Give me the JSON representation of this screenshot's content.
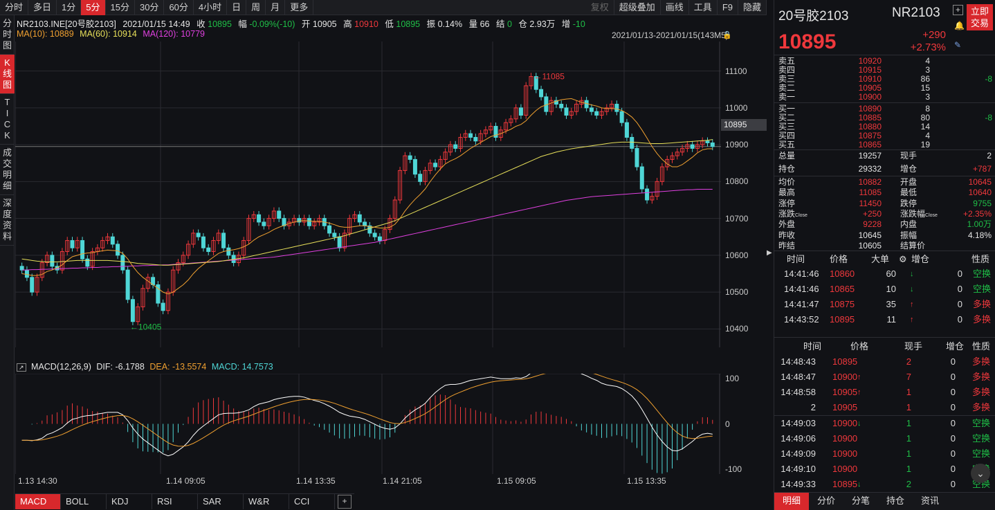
{
  "toolbar": {
    "items": [
      "分时",
      "多日",
      "1分",
      "5分",
      "15分",
      "30分",
      "60分",
      "4小时",
      "日",
      "周",
      "月",
      "更多"
    ],
    "active_index": 3,
    "right_items": [
      "复权",
      "超级叠加",
      "画线",
      "工具",
      "F9",
      "隐藏"
    ]
  },
  "leftnav": [
    "分时图",
    "K线图",
    "TICK",
    "成交明细",
    "深度资料"
  ],
  "leftnav_active": 1,
  "chart_info": {
    "symbol": "NR2103.INE[20号胶2103]",
    "datetime": "2021/01/15 14:49",
    "close_label": "收",
    "close": "10895",
    "range_label": "幅",
    "range": "-0.09%(-10)",
    "open_label": "开",
    "open": "10905",
    "high_label": "高",
    "high": "10910",
    "low_label": "低",
    "low": "10895",
    "amp_label": "振",
    "amp": "0.14%",
    "vol_label": "量",
    "vol": "66",
    "settle_label": "结",
    "settle": "0",
    "oi_label": "仓",
    "oi": "2.93万",
    "inc_label": "增",
    "inc": "-10"
  },
  "ma_info": {
    "ma10": "MA(10): 10889",
    "ma60": "MA(60): 10914",
    "ma120": "MA(120): 10779"
  },
  "date_range": "2021/01/13-2021/01/15(143M5)",
  "price_tag": "10895",
  "high_marker": "11085",
  "low_marker": "10405",
  "macd_info": {
    "name": "MACD(12,26,9)",
    "dif": "DIF: -6.1788",
    "dea": "DEA: -13.5574",
    "macd": "MACD: 14.7573"
  },
  "chart_data": {
    "type": "candlestick",
    "y_ticks": [
      "11100",
      "11000",
      "10900",
      "10800",
      "10700",
      "10600",
      "10500",
      "10400"
    ],
    "ylim": [
      10350,
      11180
    ],
    "x_labels": [
      "1.13 14:30",
      "1.14 09:05",
      "1.14 13:35",
      "1.14 21:05",
      "1.15 09:05",
      "1.15 13:35"
    ],
    "closes": [
      10560,
      10540,
      10500,
      10540,
      10580,
      10600,
      10570,
      10560,
      10610,
      10640,
      10620,
      10640,
      10590,
      10570,
      10610,
      10620,
      10640,
      10650,
      10630,
      10600,
      10560,
      10480,
      10420,
      10460,
      10510,
      10540,
      10520,
      10470,
      10450,
      10500,
      10560,
      10580,
      10600,
      10630,
      10660,
      10650,
      10620,
      10610,
      10640,
      10660,
      10620,
      10600,
      10580,
      10600,
      10640,
      10700,
      10710,
      10690,
      10680,
      10700,
      10720,
      10700,
      10680,
      10690,
      10700,
      10690,
      10700,
      10680,
      10690,
      10700,
      10680,
      10660,
      10650,
      10620,
      10660,
      10700,
      10710,
      10690,
      10680,
      10660,
      10650,
      10640,
      10670,
      10700,
      10750,
      10830,
      10870,
      10860,
      10820,
      10800,
      10830,
      10850,
      10840,
      10860,
      10880,
      10900,
      10890,
      10920,
      10930,
      10920,
      10910,
      10930,
      10940,
      10950,
      10920,
      10940,
      10960,
      10970,
      11000,
      10980,
      11060,
      11085,
      11050,
      11030,
      10990,
      11020,
      11010,
      11000,
      10980,
      10990,
      11010,
      11020,
      11000,
      10990,
      10980,
      10990,
      11000,
      11010,
      10990,
      10960,
      10920,
      10890,
      10840,
      10780,
      10750,
      10760,
      10800,
      10840,
      10860,
      10870,
      10880,
      10890,
      10900,
      10890,
      10900,
      10910,
      10905,
      10895
    ],
    "ma10": [
      10550,
      10548,
      10545,
      10545,
      10548,
      10556,
      10560,
      10566,
      10574,
      10586,
      10596,
      10600,
      10604,
      10606,
      10607,
      10610,
      10612,
      10614,
      10613,
      10612,
      10605,
      10590,
      10570,
      10553,
      10540,
      10530,
      10520,
      10510,
      10500,
      10495,
      10500,
      10510,
      10520,
      10533,
      10550,
      10564,
      10575,
      10585,
      10595,
      10605,
      10610,
      10613,
      10615,
      10618,
      10623,
      10630,
      10641,
      10650,
      10656,
      10662,
      10670,
      10676,
      10681,
      10686,
      10690,
      10693,
      10694,
      10693,
      10692,
      10692,
      10690,
      10687,
      10683,
      10678,
      10676,
      10676,
      10678,
      10680,
      10680,
      10678,
      10676,
      10674,
      10674,
      10676,
      10684,
      10700,
      10720,
      10737,
      10752,
      10765,
      10780,
      10800,
      10818,
      10834,
      10848,
      10856,
      10862,
      10870,
      10880,
      10890,
      10898,
      10906,
      10914,
      10922,
      10926,
      10930,
      10936,
      10942,
      10950,
      10955,
      10965,
      10980,
      10993,
      11003,
      11008,
      11013,
      11018,
      11022,
      11024,
      11025,
      11020,
      11015,
      11012,
      11008,
      11005,
      11000,
      10998,
      10998,
      10997,
      10993,
      10985,
      10975,
      10960,
      10940,
      10918,
      10895,
      10876,
      10860,
      10848,
      10840,
      10840,
      10846,
      10856,
      10866,
      10878,
      10886,
      10889,
      10889
    ],
    "ma60": [
      10590,
      10588,
      10586,
      10584,
      10583,
      10582,
      10582,
      10582,
      10583,
      10584,
      10585,
      10586,
      10586,
      10586,
      10586,
      10586,
      10586,
      10586,
      10585,
      10584,
      10583,
      10582,
      10580,
      10578,
      10577,
      10576,
      10575,
      10574,
      10573,
      10573,
      10574,
      10575,
      10576,
      10577,
      10578,
      10579,
      10580,
      10581,
      10582,
      10583,
      10585,
      10587,
      10589,
      10591,
      10593,
      10596,
      10599,
      10602,
      10605,
      10608,
      10611,
      10614,
      10617,
      10620,
      10623,
      10626,
      10629,
      10632,
      10635,
      10638,
      10641,
      10644,
      10647,
      10650,
      10653,
      10657,
      10661,
      10665,
      10669,
      10673,
      10677,
      10681,
      10685,
      10689,
      10694,
      10700,
      10706,
      10712,
      10718,
      10724,
      10730,
      10736,
      10742,
      10748,
      10754,
      10760,
      10766,
      10772,
      10778,
      10784,
      10790,
      10796,
      10802,
      10808,
      10814,
      10820,
      10826,
      10832,
      10838,
      10844,
      10850,
      10856,
      10862,
      10868,
      10872,
      10876,
      10880,
      10883,
      10886,
      10889,
      10891,
      10893,
      10895,
      10897,
      10899,
      10901,
      10903,
      10905,
      10906,
      10907,
      10907,
      10907,
      10906,
      10905,
      10904,
      10903,
      10903,
      10903,
      10904,
      10905,
      10906,
      10907,
      10908,
      10909,
      10910,
      10911,
      10912,
      10914
    ],
    "ma120": [
      10560,
      10560,
      10561,
      10561,
      10562,
      10562,
      10563,
      10563,
      10564,
      10564,
      10565,
      10565,
      10566,
      10566,
      10567,
      10567,
      10568,
      10568,
      10569,
      10569,
      10570,
      10570,
      10571,
      10571,
      10572,
      10572,
      10573,
      10573,
      10574,
      10574,
      10575,
      10576,
      10577,
      10578,
      10579,
      10580,
      10581,
      10582,
      10583,
      10584,
      10585,
      10586,
      10587,
      10588,
      10589,
      10590,
      10591,
      10592,
      10593,
      10594,
      10595,
      10597,
      10599,
      10601,
      10603,
      10605,
      10607,
      10609,
      10611,
      10613,
      10615,
      10617,
      10619,
      10621,
      10623,
      10625,
      10627,
      10629,
      10631,
      10633,
      10635,
      10638,
      10641,
      10644,
      10647,
      10650,
      10653,
      10656,
      10659,
      10662,
      10665,
      10668,
      10671,
      10674,
      10677,
      10680,
      10683,
      10686,
      10689,
      10692,
      10695,
      10698,
      10701,
      10704,
      10707,
      10710,
      10713,
      10716,
      10719,
      10722,
      10725,
      10728,
      10731,
      10734,
      10737,
      10740,
      10743,
      10746,
      10749,
      10751,
      10753,
      10755,
      10757,
      10759,
      10760,
      10761,
      10762,
      10763,
      10764,
      10765,
      10766,
      10767,
      10768,
      10769,
      10770,
      10771,
      10772,
      10773,
      10774,
      10775,
      10776,
      10777,
      10778,
      10778,
      10779,
      10779,
      10779,
      10779
    ],
    "macd_ylim": [
      -110,
      110
    ],
    "macd_ticks": [
      "100",
      "0",
      "-100"
    ]
  },
  "right": {
    "name": "20号胶2103",
    "code": "NR2103",
    "trade_button": "立即交易",
    "price": "10895",
    "change": "+290",
    "change_pct": "+2.73%",
    "asks": [
      {
        "label": "卖五",
        "price": "10920",
        "vol": "4",
        "chg": ""
      },
      {
        "label": "卖四",
        "price": "10915",
        "vol": "3",
        "chg": ""
      },
      {
        "label": "卖三",
        "price": "10910",
        "vol": "86",
        "chg": "-8"
      },
      {
        "label": "卖二",
        "price": "10905",
        "vol": "15",
        "chg": ""
      },
      {
        "label": "卖一",
        "price": "10900",
        "vol": "3",
        "chg": ""
      }
    ],
    "bids": [
      {
        "label": "买一",
        "price": "10890",
        "vol": "8",
        "chg": ""
      },
      {
        "label": "买二",
        "price": "10885",
        "vol": "80",
        "chg": "-8"
      },
      {
        "label": "买三",
        "price": "10880",
        "vol": "14",
        "chg": ""
      },
      {
        "label": "买四",
        "price": "10875",
        "vol": "4",
        "chg": ""
      },
      {
        "label": "买五",
        "price": "10865",
        "vol": "19",
        "chg": ""
      }
    ],
    "stats1": [
      {
        "l1": "总量",
        "v1": "19257",
        "l2": "现手",
        "v2": "2",
        "c1": "white",
        "c2": "white"
      },
      {
        "l1": "持仓",
        "v1": "29332",
        "l2": "增仓",
        "v2": "+787",
        "c1": "white",
        "c2": "red"
      }
    ],
    "stats2": [
      {
        "l1": "均价",
        "v1": "10882",
        "l2": "开盘",
        "v2": "10645",
        "c1": "red",
        "c2": "red"
      },
      {
        "l1": "最高",
        "v1": "11085",
        "l2": "最低",
        "v2": "10640",
        "c1": "red",
        "c2": "red"
      },
      {
        "l1": "涨停",
        "v1": "11450",
        "l2": "跌停",
        "v2": "9755",
        "c1": "red",
        "c2": "green"
      },
      {
        "l1": "涨跌",
        "v1": "+250",
        "l2": "涨跌幅",
        "v2": "+2.35%",
        "c1": "red",
        "c2": "red",
        "sub": "Close"
      },
      {
        "l1": "外盘",
        "v1": "9228",
        "l2": "内盘",
        "v2": "1.00万",
        "c1": "red",
        "c2": "green"
      },
      {
        "l1": "昨收",
        "v1": "10645",
        "l2": "振幅",
        "v2": "4.18%",
        "c1": "white",
        "c2": "white"
      },
      {
        "l1": "昨结",
        "v1": "10605",
        "l2": "结算价",
        "v2": "",
        "c1": "white",
        "c2": "white"
      }
    ],
    "big_trades_header": [
      "时间",
      "价格",
      "大单",
      "增仓",
      "性质"
    ],
    "big_trades": [
      {
        "time": "14:41:46",
        "price": "10860",
        "vol": "60",
        "dir": "down",
        "oi": "0",
        "nature": "空换"
      },
      {
        "time": "14:41:46",
        "price": "10865",
        "vol": "10",
        "dir": "down",
        "oi": "0",
        "nature": "空换"
      },
      {
        "time": "14:41:47",
        "price": "10875",
        "vol": "35",
        "dir": "up",
        "oi": "0",
        "nature": "多换"
      },
      {
        "time": "14:43:52",
        "price": "10895",
        "vol": "11",
        "dir": "up",
        "oi": "0",
        "nature": "多换"
      }
    ],
    "detail_header": [
      "时间",
      "价格",
      "现手",
      "增仓",
      "性质"
    ],
    "details": [
      {
        "time": "14:48:43",
        "price": "10895",
        "dir": "",
        "vol": "2",
        "oi": "0",
        "nature": "多换",
        "vc": "red",
        "nc": "red"
      },
      {
        "time": "14:48:47",
        "price": "10900",
        "dir": "up",
        "vol": "7",
        "oi": "0",
        "nature": "多换",
        "vc": "red",
        "nc": "red"
      },
      {
        "time": "14:48:58",
        "price": "10905",
        "dir": "up",
        "vol": "1",
        "oi": "0",
        "nature": "多换",
        "vc": "red",
        "nc": "red"
      },
      {
        "time": "2",
        "price": "10905",
        "dir": "",
        "vol": "1",
        "oi": "0",
        "nature": "多换",
        "vc": "red",
        "nc": "red"
      },
      {
        "time": "14:49:03",
        "price": "10900",
        "dir": "down",
        "vol": "1",
        "oi": "0",
        "nature": "空换",
        "vc": "green",
        "nc": "green"
      },
      {
        "time": "14:49:06",
        "price": "10900",
        "dir": "",
        "vol": "1",
        "oi": "0",
        "nature": "空换",
        "vc": "green",
        "nc": "green"
      },
      {
        "time": "14:49:09",
        "price": "10900",
        "dir": "",
        "vol": "1",
        "oi": "0",
        "nature": "空换",
        "vc": "green",
        "nc": "green"
      },
      {
        "time": "14:49:10",
        "price": "10900",
        "dir": "",
        "vol": "1",
        "oi": "0",
        "nature": "空换",
        "vc": "green",
        "nc": "green"
      },
      {
        "time": "14:49:33",
        "price": "10895",
        "dir": "down",
        "vol": "2",
        "oi": "0",
        "nature": "空换",
        "vc": "green",
        "nc": "green"
      }
    ],
    "tabs": [
      "明细",
      "分价",
      "分笔",
      "持仓",
      "资讯"
    ]
  },
  "bottom_tabs": [
    "MACD",
    "BOLL",
    "KDJ",
    "RSI",
    "SAR",
    "W&R",
    "CCI"
  ],
  "colors": {
    "up": "#f0383c",
    "down": "#4fd6d6",
    "ma10": "#f0a030",
    "ma60": "#e8e05a",
    "ma120": "#e040e0",
    "dif": "#ffffff",
    "dea": "#f0a030",
    "accent": "#d8282c"
  }
}
